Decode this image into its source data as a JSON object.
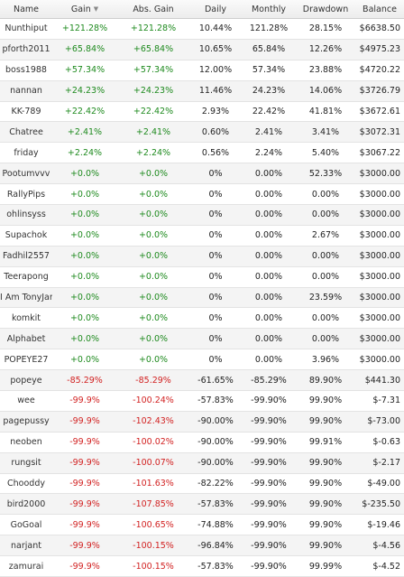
{
  "header": {
    "name": "Name",
    "gain": "Gain",
    "abs_gain": "Abs. Gain",
    "daily": "Daily",
    "monthly": "Monthly",
    "drawdown": "Drawdown",
    "balance": "Balance",
    "sort_icon": "sort-down-icon"
  },
  "colors": {
    "positive": "#1e8a1e",
    "negative": "#d22222"
  },
  "rows": [
    {
      "name": "Nunthiput",
      "gain": "+121.28%",
      "abs_gain": "+121.28%",
      "daily": "10.44%",
      "monthly": "121.28%",
      "drawdown": "28.15%",
      "balance": "$6638.50",
      "sign": "pos"
    },
    {
      "name": "pforth2011",
      "gain": "+65.84%",
      "abs_gain": "+65.84%",
      "daily": "10.65%",
      "monthly": "65.84%",
      "drawdown": "12.26%",
      "balance": "$4975.23",
      "sign": "pos"
    },
    {
      "name": "boss1988",
      "gain": "+57.34%",
      "abs_gain": "+57.34%",
      "daily": "12.00%",
      "monthly": "57.34%",
      "drawdown": "23.88%",
      "balance": "$4720.22",
      "sign": "pos"
    },
    {
      "name": "nannan",
      "gain": "+24.23%",
      "abs_gain": "+24.23%",
      "daily": "11.46%",
      "monthly": "24.23%",
      "drawdown": "14.06%",
      "balance": "$3726.79",
      "sign": "pos"
    },
    {
      "name": "KK-789",
      "gain": "+22.42%",
      "abs_gain": "+22.42%",
      "daily": "2.93%",
      "monthly": "22.42%",
      "drawdown": "41.81%",
      "balance": "$3672.61",
      "sign": "pos"
    },
    {
      "name": "Chatree",
      "gain": "+2.41%",
      "abs_gain": "+2.41%",
      "daily": "0.60%",
      "monthly": "2.41%",
      "drawdown": "3.41%",
      "balance": "$3072.31",
      "sign": "pos"
    },
    {
      "name": "friday",
      "gain": "+2.24%",
      "abs_gain": "+2.24%",
      "daily": "0.56%",
      "monthly": "2.24%",
      "drawdown": "5.40%",
      "balance": "$3067.22",
      "sign": "pos"
    },
    {
      "name": "Pootumvvv",
      "gain": "+0.0%",
      "abs_gain": "+0.0%",
      "daily": "0%",
      "monthly": "0.00%",
      "drawdown": "52.33%",
      "balance": "$3000.00",
      "sign": "pos"
    },
    {
      "name": "RallyPips",
      "gain": "+0.0%",
      "abs_gain": "+0.0%",
      "daily": "0%",
      "monthly": "0.00%",
      "drawdown": "0.00%",
      "balance": "$3000.00",
      "sign": "pos"
    },
    {
      "name": "ohlinsyss",
      "gain": "+0.0%",
      "abs_gain": "+0.0%",
      "daily": "0%",
      "monthly": "0.00%",
      "drawdown": "0.00%",
      "balance": "$3000.00",
      "sign": "pos"
    },
    {
      "name": "Supachok",
      "gain": "+0.0%",
      "abs_gain": "+0.0%",
      "daily": "0%",
      "monthly": "0.00%",
      "drawdown": "2.67%",
      "balance": "$3000.00",
      "sign": "pos"
    },
    {
      "name": "Fadhil2557",
      "gain": "+0.0%",
      "abs_gain": "+0.0%",
      "daily": "0%",
      "monthly": "0.00%",
      "drawdown": "0.00%",
      "balance": "$3000.00",
      "sign": "pos"
    },
    {
      "name": "Teerapong",
      "gain": "+0.0%",
      "abs_gain": "+0.0%",
      "daily": "0%",
      "monthly": "0.00%",
      "drawdown": "0.00%",
      "balance": "$3000.00",
      "sign": "pos"
    },
    {
      "name": "I Am TonyJar",
      "gain": "+0.0%",
      "abs_gain": "+0.0%",
      "daily": "0%",
      "monthly": "0.00%",
      "drawdown": "23.59%",
      "balance": "$3000.00",
      "sign": "pos"
    },
    {
      "name": "komkit",
      "gain": "+0.0%",
      "abs_gain": "+0.0%",
      "daily": "0%",
      "monthly": "0.00%",
      "drawdown": "0.00%",
      "balance": "$3000.00",
      "sign": "pos"
    },
    {
      "name": "Alphabet",
      "gain": "+0.0%",
      "abs_gain": "+0.0%",
      "daily": "0%",
      "monthly": "0.00%",
      "drawdown": "0.00%",
      "balance": "$3000.00",
      "sign": "pos"
    },
    {
      "name": "POPEYE27",
      "gain": "+0.0%",
      "abs_gain": "+0.0%",
      "daily": "0%",
      "monthly": "0.00%",
      "drawdown": "3.96%",
      "balance": "$3000.00",
      "sign": "pos"
    },
    {
      "name": "popeye",
      "gain": "-85.29%",
      "abs_gain": "-85.29%",
      "daily": "-61.65%",
      "monthly": "-85.29%",
      "drawdown": "89.90%",
      "balance": "$441.30",
      "sign": "neg"
    },
    {
      "name": "wee",
      "gain": "-99.9%",
      "abs_gain": "-100.24%",
      "daily": "-57.83%",
      "monthly": "-99.90%",
      "drawdown": "99.90%",
      "balance": "$-7.31",
      "sign": "neg"
    },
    {
      "name": "pagepussy",
      "gain": "-99.9%",
      "abs_gain": "-102.43%",
      "daily": "-90.00%",
      "monthly": "-99.90%",
      "drawdown": "99.90%",
      "balance": "$-73.00",
      "sign": "neg"
    },
    {
      "name": "neoben",
      "gain": "-99.9%",
      "abs_gain": "-100.02%",
      "daily": "-90.00%",
      "monthly": "-99.90%",
      "drawdown": "99.91%",
      "balance": "$-0.63",
      "sign": "neg"
    },
    {
      "name": "rungsit",
      "gain": "-99.9%",
      "abs_gain": "-100.07%",
      "daily": "-90.00%",
      "monthly": "-99.90%",
      "drawdown": "99.90%",
      "balance": "$-2.17",
      "sign": "neg"
    },
    {
      "name": "Chooddy",
      "gain": "-99.9%",
      "abs_gain": "-101.63%",
      "daily": "-82.22%",
      "monthly": "-99.90%",
      "drawdown": "99.90%",
      "balance": "$-49.00",
      "sign": "neg"
    },
    {
      "name": "bird2000",
      "gain": "-99.9%",
      "abs_gain": "-107.85%",
      "daily": "-57.83%",
      "monthly": "-99.90%",
      "drawdown": "99.90%",
      "balance": "$-235.50",
      "sign": "neg"
    },
    {
      "name": "GoGoal",
      "gain": "-99.9%",
      "abs_gain": "-100.65%",
      "daily": "-74.88%",
      "monthly": "-99.90%",
      "drawdown": "99.90%",
      "balance": "$-19.46",
      "sign": "neg"
    },
    {
      "name": "narjant",
      "gain": "-99.9%",
      "abs_gain": "-100.15%",
      "daily": "-96.84%",
      "monthly": "-99.90%",
      "drawdown": "99.90%",
      "balance": "$-4.56",
      "sign": "neg"
    },
    {
      "name": "zamurai",
      "gain": "-99.9%",
      "abs_gain": "-100.15%",
      "daily": "-57.83%",
      "monthly": "-99.90%",
      "drawdown": "99.99%",
      "balance": "$-4.52",
      "sign": "neg"
    }
  ]
}
